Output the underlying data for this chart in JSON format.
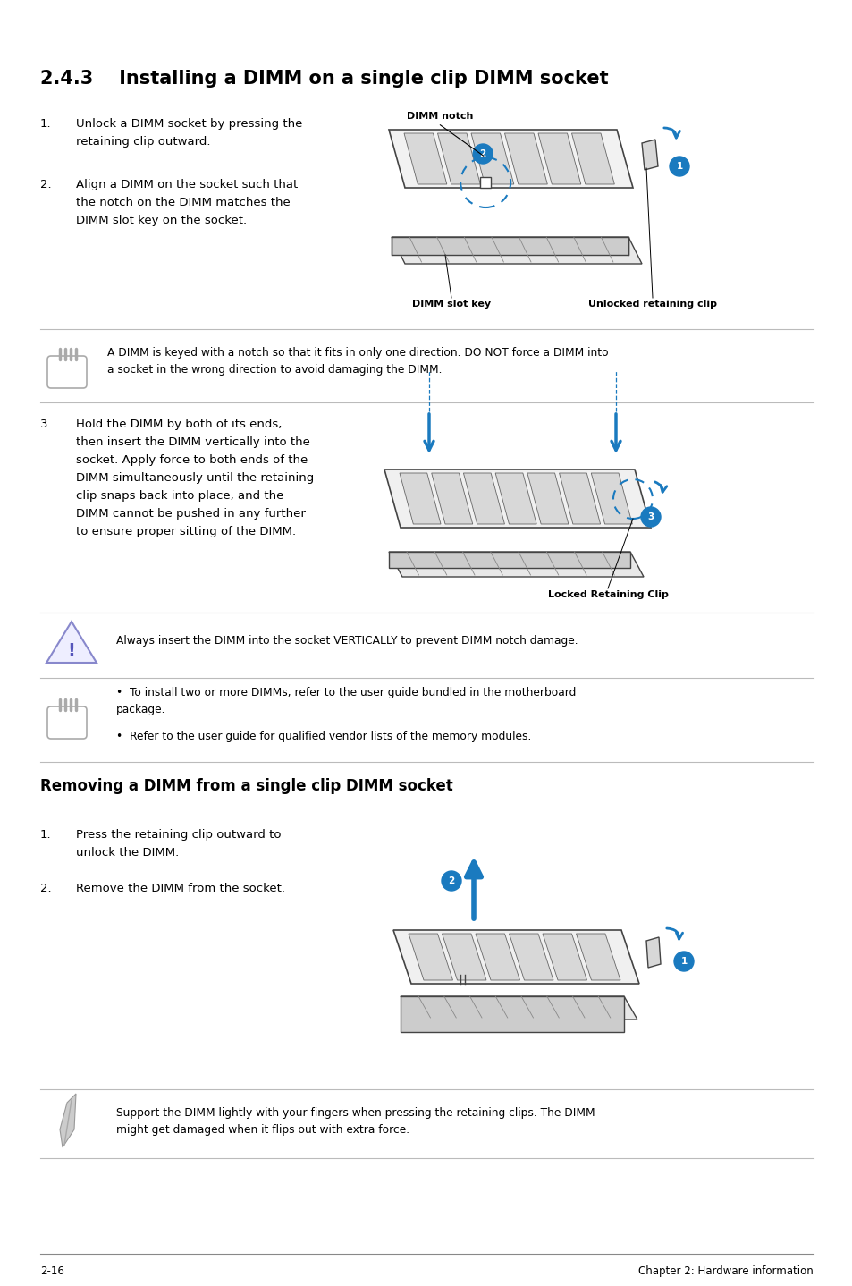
{
  "bg_color": "#ffffff",
  "title": "2.4.3    Installing a DIMM on a single clip DIMM socket",
  "title_fontsize": 15,
  "body_fontsize": 9.5,
  "small_fontsize": 8.8,
  "footer_left": "2-16",
  "footer_right": "Chapter 2: Hardware information",
  "section2_title": "Removing a DIMM from a single clip DIMM socket",
  "step1_text": "Unlock a DIMM socket by pressing the\nretaining clip outward.",
  "step2_text": "Align a DIMM on the socket such that\nthe notch on the DIMM matches the\nDIMM slot key on the socket.",
  "step3_text": "Hold the DIMM by both of its ends,\nthen insert the DIMM vertically into the\nsocket. Apply force to both ends of the\nDIMM simultaneously until the retaining\nclip snaps back into place, and the\nDIMM cannot be pushed in any further\nto ensure proper sitting of the DIMM.",
  "note1_text": "A DIMM is keyed with a notch so that it fits in only one direction. DO NOT force a DIMM into\na socket in the wrong direction to avoid damaging the DIMM.",
  "warning_text": "Always insert the DIMM into the socket VERTICALLY to prevent DIMM notch damage.",
  "note2_b1": "To install two or more DIMMs, refer to the user guide bundled in the motherboard\npackage.",
  "note2_b2": "Refer to the user guide for qualified vendor lists of the memory modules.",
  "rem_step1": "Press the retaining clip outward to\nunlock the DIMM.",
  "rem_step2": "Remove the DIMM from the socket.",
  "note3_text": "Support the DIMM lightly with your fingers when pressing the retaining clips. The DIMM\nmight get damaged when it flips out with extra force.",
  "blue": "#1a7abf",
  "text_color": "#000000",
  "dimm_face": "#f0f0f0",
  "dimm_edge": "#444444",
  "chip_face": "#d8d8d8",
  "chip_edge": "#666666"
}
